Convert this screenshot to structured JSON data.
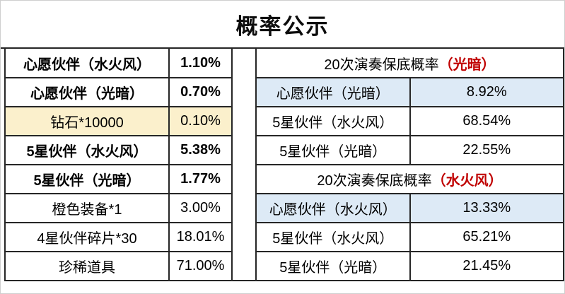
{
  "title": "概率公示",
  "colors": {
    "accent_red": "#C00000",
    "highlight_yellow_bg": "#FBF0CC",
    "highlight_blue_bg": "#DDEAF6",
    "border": "#262626"
  },
  "item_table": {
    "rows": [
      {
        "name": "心愿伙伴（水火风）",
        "rate": "1.10%",
        "style": "red"
      },
      {
        "name": "心愿伙伴（光暗）",
        "rate": "0.70%",
        "style": "red"
      },
      {
        "name": "钻石*10000",
        "rate": "0.10%",
        "style": "yellow"
      },
      {
        "name": "5星伙伴（水火风）",
        "rate": "5.38%",
        "style": "red"
      },
      {
        "name": "5星伙伴（光暗）",
        "rate": "1.77%",
        "style": "red"
      },
      {
        "name": "橙色装备*1",
        "rate": "3.00%",
        "style": "plain"
      },
      {
        "name": "4星伙伴碎片*30",
        "rate": "18.01%",
        "style": "plain"
      },
      {
        "name": "珍稀道具",
        "rate": "71.00%",
        "style": "plain"
      }
    ]
  },
  "pity_table": {
    "sections": [
      {
        "header_text": "20次演奏保底概率",
        "header_highlight": "（光暗）",
        "rows": [
          {
            "name": "心愿伙伴（光暗）",
            "rate": "8.92%",
            "style": "blue"
          },
          {
            "name": "5星伙伴（水火风）",
            "rate": "68.54%",
            "style": "plain"
          },
          {
            "name": "5星伙伴（光暗）",
            "rate": "22.55%",
            "style": "plain"
          }
        ]
      },
      {
        "header_text": "20次演奏保底概率",
        "header_highlight": "（水火风）",
        "rows": [
          {
            "name": "心愿伙伴（水火风）",
            "rate": "13.33%",
            "style": "blue"
          },
          {
            "name": "5星伙伴（水火风）",
            "rate": "65.21%",
            "style": "plain"
          },
          {
            "name": "5星伙伴（光暗）",
            "rate": "21.45%",
            "style": "plain"
          }
        ]
      }
    ]
  }
}
